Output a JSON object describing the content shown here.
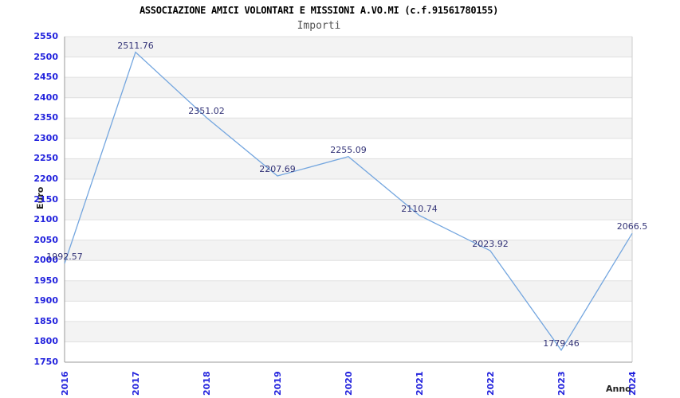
{
  "chart_data": {
    "type": "line",
    "title": "ASSOCIAZIONE AMICI VOLONTARI E MISSIONI A.VO.MI (c.f.91561780155)",
    "subtitle": "Importi",
    "xlabel": "Anno",
    "ylabel": "Euro",
    "categories": [
      "2016",
      "2017",
      "2018",
      "2019",
      "2020",
      "2021",
      "2022",
      "2023",
      "2024"
    ],
    "series": [
      {
        "name": "Importi",
        "values": [
          1992.57,
          2511.76,
          2351.02,
          2207.69,
          2255.09,
          2110.74,
          2023.92,
          1779.46,
          2066.5
        ]
      }
    ],
    "point_labels": [
      "1992.57",
      "2511.76",
      "2351.02",
      "2207.69",
      "2255.09",
      "2110.74",
      "2023.92",
      "1779.46",
      "2066.5"
    ],
    "ylim": [
      1750,
      2550
    ],
    "y_tick_step": 50,
    "y_ticks": [
      "1750",
      "1800",
      "1850",
      "1900",
      "1950",
      "2000",
      "2050",
      "2100",
      "2150",
      "2200",
      "2250",
      "2300",
      "2350",
      "2400",
      "2450",
      "2500",
      "2550"
    ],
    "grid": "horizontal-striped-bands",
    "legend": "none",
    "colors": {
      "line": "#74a6df",
      "tick_label": "#2222dd",
      "point_label": "#333377",
      "band": "#f3f3f3",
      "band_alt": "#ffffff",
      "gridline": "#e0e0e0",
      "axis": "#999999",
      "right_border": "#cccccc",
      "title": "#000000",
      "subtitle": "#555555",
      "axis_title": "#222222",
      "background": "#ffffff"
    }
  }
}
